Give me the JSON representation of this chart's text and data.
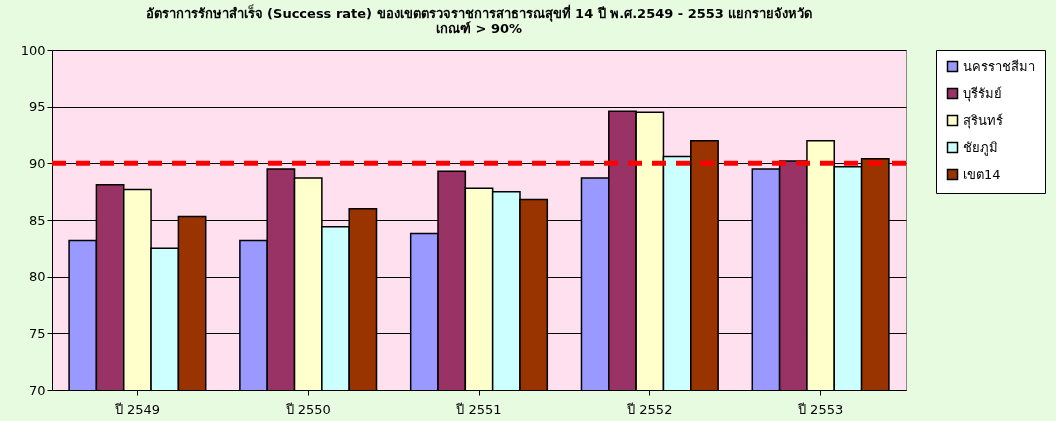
{
  "chart_data": {
    "type": "bar",
    "title": "อัตราการรักษาสำเร็จ (Success rate) ของเขตตรวจราชการสาธารณสุขที่ 14  ปี พ.ศ.2549 - 2553 แยกรายจังหวัด",
    "subtitle": "เกณฑ์  >  90%",
    "categories": [
      "ปี 2549",
      "ปี 2550",
      "ปี 2551",
      "ปี 2552",
      "ปี 2553"
    ],
    "series": [
      {
        "name": "นครราชสีมา",
        "color": "#9999ff",
        "values": [
          83.2,
          83.2,
          83.8,
          88.7,
          89.5
        ]
      },
      {
        "name": "บุรีรัมย์",
        "color": "#993366",
        "values": [
          88.1,
          89.5,
          89.3,
          94.6,
          90.2
        ]
      },
      {
        "name": "สุรินทร์",
        "color": "#ffffcc",
        "values": [
          87.7,
          88.7,
          87.8,
          94.5,
          92.0
        ]
      },
      {
        "name": "ชัยภูมิ",
        "color": "#ccffff",
        "values": [
          82.5,
          84.4,
          87.5,
          90.6,
          89.7
        ]
      },
      {
        "name": "เขต14",
        "color": "#993300",
        "values": [
          85.3,
          86.0,
          86.8,
          92.0,
          90.4
        ]
      }
    ],
    "ylim": [
      70,
      100
    ],
    "yticks": [
      70,
      75,
      80,
      85,
      90,
      95,
      100
    ],
    "grid": "y",
    "legend": "right",
    "ref_lines": [
      {
        "axis": "y",
        "value": 90,
        "color": "#ff0000",
        "line_style": "dashed"
      }
    ]
  }
}
